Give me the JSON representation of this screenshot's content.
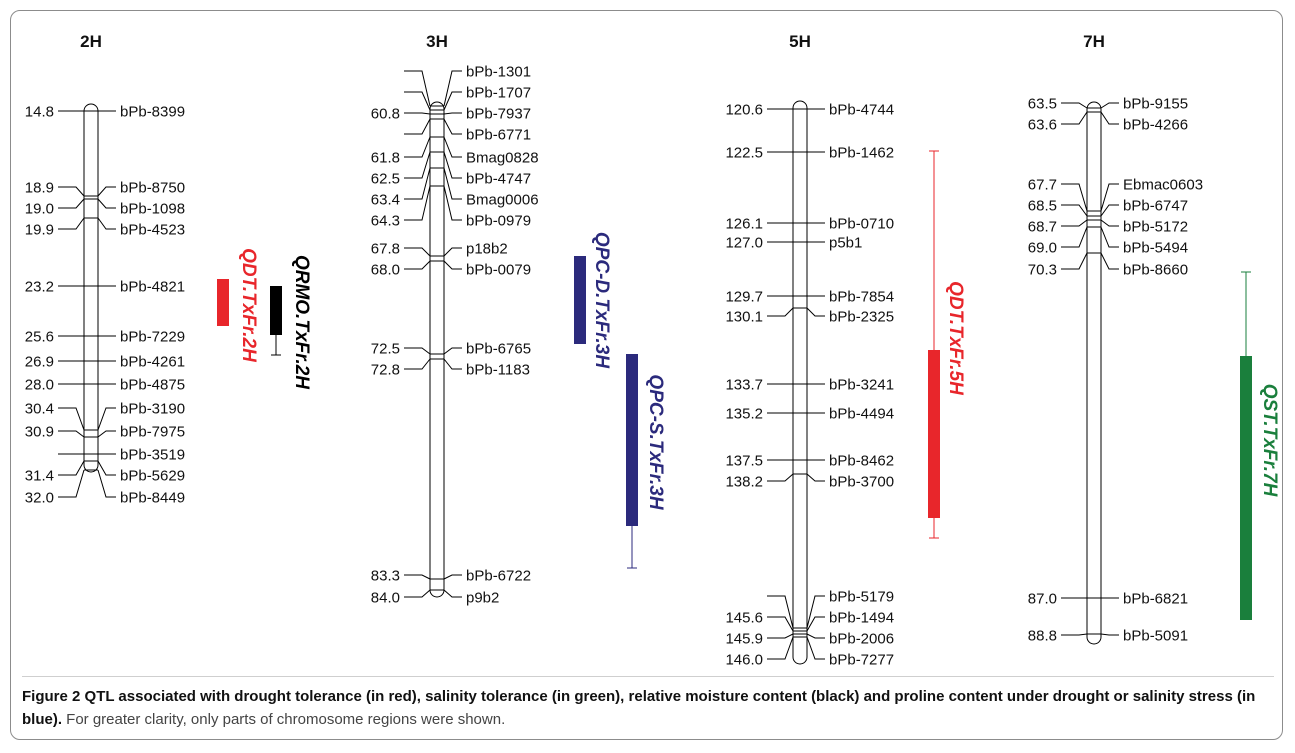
{
  "figure": {
    "label": "Figure 2",
    "caption_bold": "QTL associated with drought tolerance (in red), salinity tolerance (in green), relative moisture content (black) and proline content under drought or salinity stress (in blue).",
    "caption_rest": "For greater clarity, only parts of chromosome regions were shown."
  },
  "colors": {
    "drought": "#e8262b",
    "salinity": "#1a7f3c",
    "moisture": "#000000",
    "proline": "#2b2a7c"
  },
  "chromosomes": [
    {
      "name": "2H",
      "markers": [
        {
          "pos": "14.8",
          "name": "bPb-8399"
        },
        {
          "pos": "18.9",
          "name": "bPb-8750"
        },
        {
          "pos": "19.0",
          "name": "bPb-1098"
        },
        {
          "pos": "19.9",
          "name": "bPb-4523"
        },
        {
          "pos": "23.2",
          "name": "bPb-4821"
        },
        {
          "pos": "25.6",
          "name": "bPb-7229"
        },
        {
          "pos": "26.9",
          "name": "bPb-4261"
        },
        {
          "pos": "28.0",
          "name": "bPb-4875"
        },
        {
          "pos": "30.4",
          "name": "bPb-3190"
        },
        {
          "pos": "30.9",
          "name": "bPb-7975"
        },
        {
          "pos": "",
          "name": "bPb-3519"
        },
        {
          "pos": "31.4",
          "name": "bPb-5629"
        },
        {
          "pos": "32.0",
          "name": "bPb-8449"
        }
      ],
      "qtls": [
        {
          "name": "QDT.TxFr.2H",
          "trait": "drought"
        },
        {
          "name": "QRMO.TxFr.2H",
          "trait": "moisture"
        }
      ]
    },
    {
      "name": "3H",
      "markers": [
        {
          "pos": "",
          "name": "bPb-1301"
        },
        {
          "pos": "",
          "name": "bPb-1707"
        },
        {
          "pos": "60.8",
          "name": "bPb-7937"
        },
        {
          "pos": "",
          "name": "bPb-6771"
        },
        {
          "pos": "61.8",
          "name": "Bmag0828"
        },
        {
          "pos": "62.5",
          "name": "bPb-4747"
        },
        {
          "pos": "63.4",
          "name": "Bmag0006"
        },
        {
          "pos": "64.3",
          "name": "bPb-0979"
        },
        {
          "pos": "67.8",
          "name": "p18b2"
        },
        {
          "pos": "68.0",
          "name": "bPb-0079"
        },
        {
          "pos": "72.5",
          "name": "bPb-6765"
        },
        {
          "pos": "72.8",
          "name": "bPb-1183"
        },
        {
          "pos": "83.3",
          "name": "bPb-6722"
        },
        {
          "pos": "84.0",
          "name": "p9b2"
        }
      ],
      "qtls": [
        {
          "name": "QPC-D.TxFr.3H",
          "trait": "proline"
        },
        {
          "name": "QPC-S.TxFr.3H",
          "trait": "proline"
        }
      ]
    },
    {
      "name": "5H",
      "markers": [
        {
          "pos": "120.6",
          "name": "bPb-4744"
        },
        {
          "pos": "122.5",
          "name": "bPb-1462"
        },
        {
          "pos": "126.1",
          "name": "bPb-0710"
        },
        {
          "pos": "127.0",
          "name": "p5b1"
        },
        {
          "pos": "129.7",
          "name": "bPb-7854"
        },
        {
          "pos": "130.1",
          "name": "bPb-2325"
        },
        {
          "pos": "133.7",
          "name": "bPb-3241"
        },
        {
          "pos": "135.2",
          "name": "bPb-4494"
        },
        {
          "pos": "137.5",
          "name": "bPb-8462"
        },
        {
          "pos": "138.2",
          "name": "bPb-3700"
        },
        {
          "pos": "",
          "name": "bPb-5179"
        },
        {
          "pos": "145.6",
          "name": "bPb-1494"
        },
        {
          "pos": "145.9",
          "name": "bPb-2006"
        },
        {
          "pos": "146.0",
          "name": "bPb-7277"
        }
      ],
      "qtls": [
        {
          "name": "QDT.TxFr.5H",
          "trait": "drought"
        }
      ]
    },
    {
      "name": "7H",
      "markers": [
        {
          "pos": "63.5",
          "name": "bPb-9155"
        },
        {
          "pos": "63.6",
          "name": "bPb-4266"
        },
        {
          "pos": "67.7",
          "name": "Ebmac0603"
        },
        {
          "pos": "68.5",
          "name": "bPb-6747"
        },
        {
          "pos": "68.7",
          "name": "bPb-5172"
        },
        {
          "pos": "69.0",
          "name": "bPb-5494"
        },
        {
          "pos": "70.3",
          "name": "bPb-8660"
        },
        {
          "pos": "87.0",
          "name": "bPb-6821"
        },
        {
          "pos": "88.8",
          "name": "bPb-5091"
        }
      ],
      "qtls": [
        {
          "name": "QST.TxFr.7H",
          "trait": "salinity"
        }
      ]
    }
  ]
}
